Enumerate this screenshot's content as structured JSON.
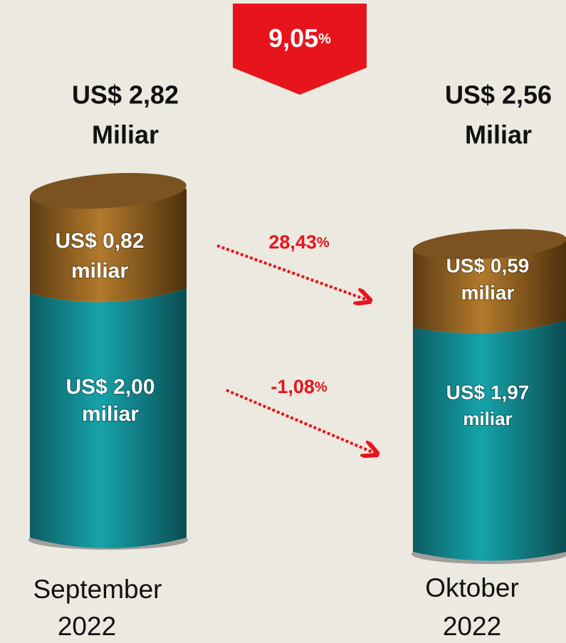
{
  "banner": {
    "value": "9,05",
    "unit": "%"
  },
  "periods": [
    {
      "total": "US$ 2,82",
      "total_unit": "Miliar",
      "top": {
        "value": "US$ 0,82",
        "unit": "miliar"
      },
      "bottom": {
        "value": "US$ 2,00",
        "unit": "miliar"
      },
      "label": [
        "September",
        "2022"
      ]
    },
    {
      "total": "US$ 2,56",
      "total_unit": "Miliar",
      "top": {
        "value": "US$ 0,59",
        "unit": "miliar"
      },
      "bottom": {
        "value": "US$ 1,97",
        "unit": "miliar"
      },
      "label": [
        "Oktober",
        "2022"
      ]
    }
  ],
  "changes": [
    {
      "value": "28,43",
      "unit": "%"
    },
    {
      "value": "-1,08",
      "unit": "%"
    }
  ]
}
